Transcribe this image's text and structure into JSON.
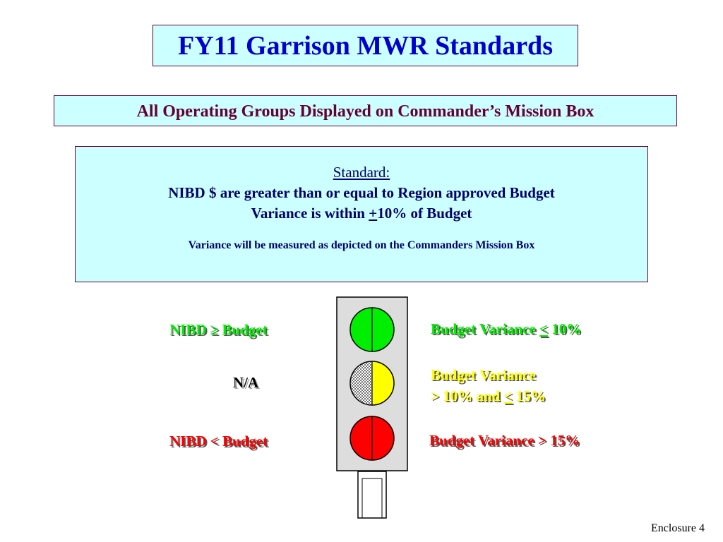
{
  "title": "FY11 Garrison MWR Standards",
  "subtitle": "All Operating Groups Displayed on Commander’s Mission Box",
  "standard": {
    "heading": "Standard:",
    "line1": "NIBD $ are greater than or equal to Region approved Budget",
    "line2_prefix": "Variance is within ",
    "line2_plus": "+",
    "line2_suffix": "10% of Budget",
    "note": "Variance will be measured as depicted on the Commanders Mission Box"
  },
  "left_labels": {
    "green": "NIBD ≥ Budget",
    "middle": "N/A",
    "red": "NIBD < Budget"
  },
  "right_labels": {
    "green_prefix": "Budget Variance ",
    "green_symbol": "<",
    "green_suffix": " 10%",
    "yellow_line1": "Budget Variance",
    "yellow_line2_prefix": "> 10% and ",
    "yellow_line2_symbol": "<",
    "yellow_line2_suffix": " 15%",
    "red": "Budget Variance > 15%"
  },
  "footer": "Enclosure 4",
  "colors": {
    "green": "#00ee00",
    "yellow": "#ffff00",
    "red": "#ff0000",
    "box_fill": "#ccffff",
    "title_blue": "#0000cc",
    "maroon": "#660033"
  }
}
